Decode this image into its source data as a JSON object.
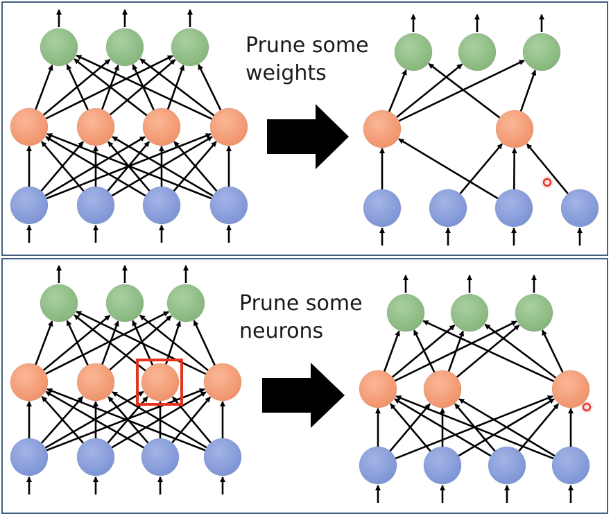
{
  "panels": [
    {
      "id": "prune-weights",
      "caption_lines": [
        "Prune some",
        "weights"
      ],
      "colors": {
        "output": "#93c08a",
        "hidden": "#f5a07c",
        "input": "#8ea2dc"
      }
    },
    {
      "id": "prune-neurons",
      "caption_lines": [
        "Prune some",
        "neurons"
      ],
      "colors": {
        "output": "#93c08a",
        "hidden": "#f5a07c",
        "input": "#8ea2dc",
        "highlight": "#e6321e"
      }
    }
  ]
}
